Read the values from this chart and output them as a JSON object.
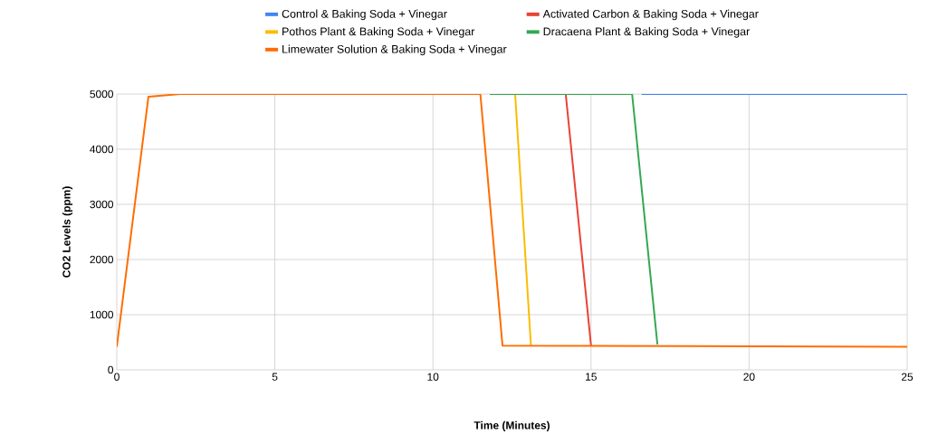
{
  "chart_data": {
    "type": "line",
    "xlabel": "Time (Minutes)",
    "ylabel": "CO2 Levels (ppm)",
    "xlim": [
      0,
      25
    ],
    "ylim": [
      0,
      5000
    ],
    "xticks": [
      0,
      5,
      10,
      15,
      20,
      25
    ],
    "yticks": [
      0,
      1000,
      2000,
      3000,
      4000,
      5000
    ],
    "grid": true,
    "legend": "top",
    "marker": "none",
    "line_style": "solid",
    "series": [
      {
        "name": "Control & Baking Soda + Vinegar",
        "color": "#4285f4",
        "x": [
          16.6,
          25
        ],
        "values": [
          5000,
          5000
        ]
      },
      {
        "name": "Activated Carbon & Baking Soda + Vinegar",
        "color": "#ea4335",
        "x": [
          14.2,
          15
        ],
        "values": [
          5000,
          440
        ]
      },
      {
        "name": "Pothos Plant & Baking Soda + Vinegar",
        "color": "#fbbc04",
        "x": [
          12.6,
          13.1
        ],
        "values": [
          5000,
          440
        ]
      },
      {
        "name": "Dracaena Plant & Baking Soda + Vinegar",
        "color": "#34a853",
        "x": [
          11.8,
          16.3,
          17.1
        ],
        "values": [
          5000,
          5000,
          460
        ]
      },
      {
        "name": "Limewater Solution & Baking Soda + Vinegar",
        "color": "#ff6d01",
        "x": [
          0,
          1,
          2,
          11.5,
          12.2,
          25
        ],
        "values": [
          420,
          4950,
          5000,
          5000,
          440,
          420
        ]
      }
    ]
  }
}
